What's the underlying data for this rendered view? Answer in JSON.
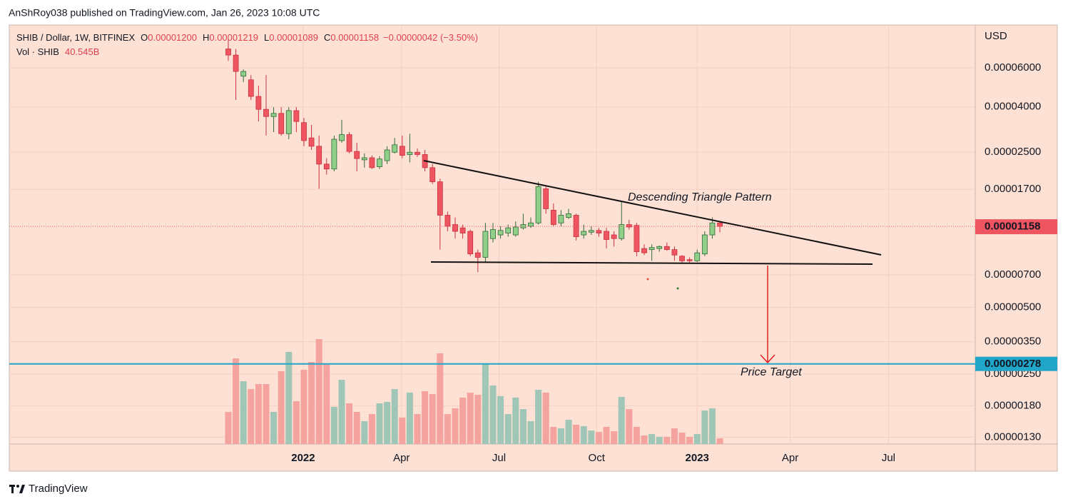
{
  "attribution": "AnShRoy038 published on TradingView.com, Jan 26, 2023 10:08 UTC",
  "brand": "TradingView",
  "chart_data": {
    "type": "candlestick",
    "header": {
      "symbol": "SHIB / Dollar, 1W, BITFINEX",
      "ohlc": [
        {
          "key": "O",
          "value": "0.00001200"
        },
        {
          "key": "H",
          "value": "0.00001219"
        },
        {
          "key": "L",
          "value": "0.00001089"
        },
        {
          "key": "C",
          "value": "0.00001158"
        }
      ],
      "change": "−0.00000042 (−3.50%)",
      "volume_label": "Vol · SHIB",
      "volume": "40.545B"
    },
    "currency": "USD",
    "categories": [
      null,
      null,
      null,
      null,
      null,
      null,
      null,
      null,
      null,
      null,
      null,
      null,
      null,
      null,
      null,
      null,
      null,
      null,
      null,
      null,
      null,
      null,
      null,
      null,
      null,
      null,
      null,
      null,
      null,
      null,
      null,
      null,
      null,
      null,
      null,
      null,
      null,
      null,
      null,
      null,
      null,
      null,
      null,
      null,
      null,
      null,
      null,
      null,
      null,
      null,
      null,
      null,
      null,
      null,
      null,
      null,
      null,
      null,
      null,
      null,
      null,
      null,
      null,
      null,
      null,
      null
    ],
    "open": [
      7.3e-05,
      6.85e-05,
      5.5e-05,
      5.3e-05,
      4.46e-05,
      3.9e-05,
      3.62e-05,
      3.74e-05,
      3.03e-05,
      3.85e-05,
      3.4e-05,
      2.9e-05,
      2.66e-05,
      2.21e-05,
      2.1e-05,
      2.82e-05,
      3e-05,
      2.52e-05,
      2.31e-05,
      2.36e-05,
      2.15e-05,
      2.29e-05,
      2.5e-05,
      2.66e-05,
      2.44e-05,
      2.5e-05,
      2.44e-05,
      2.13e-05,
      1.84e-05,
      1.3e-05,
      1.18e-05,
      1.14e-05,
      1.1e-05,
      8.8e-06,
      8.4e-06,
      1.02e-05,
      1.06e-05,
      1.08e-05,
      1.06e-05,
      1.14e-05,
      1.16e-05,
      1.2e-05,
      1.71e-05,
      1.37e-05,
      1.2e-05,
      1.27e-05,
      1.3e-05,
      1.06e-05,
      1.09e-05,
      1.11e-05,
      1.1e-05,
      1.06e-05,
      1.02e-05,
      1.18e-05,
      1.17e-05,
      9.2e-06,
      9.1e-06,
      9.2e-06,
      9.4e-06,
      9.1e-06,
      8.5e-06,
      8.2e-06,
      8.1e-06,
      8.7e-06,
      1.06e-05,
      1.2e-05
    ],
    "high": [
      8.07e-05,
      7.3e-05,
      5.9e-05,
      5.57e-05,
      4.98e-05,
      5.57e-05,
      3.99e-05,
      3.99e-05,
      3.99e-05,
      3.99e-05,
      3.57e-05,
      3.32e-05,
      2.97e-05,
      2.35e-05,
      2.97e-05,
      3.5e-05,
      3.08e-05,
      2.76e-05,
      2.47e-05,
      2.42e-05,
      2.4e-05,
      2.66e-05,
      2.9e-05,
      2.97e-05,
      3.03e-05,
      2.6e-05,
      2.56e-05,
      2.21e-05,
      1.9e-05,
      1.35e-05,
      1.27e-05,
      1.18e-05,
      1.12e-05,
      9.1e-06,
      1.2e-05,
      1.2e-05,
      1.16e-05,
      1.18e-05,
      1.22e-05,
      1.32e-05,
      1.27e-05,
      1.84e-05,
      1.77e-05,
      1.47e-05,
      1.37e-05,
      1.39e-05,
      1.32e-05,
      1.18e-05,
      1.16e-05,
      1.14e-05,
      1.14e-05,
      1.1e-05,
      1.5e-05,
      1.24e-05,
      1.2e-05,
      9.6e-06,
      9.6e-06,
      9.5e-06,
      9.8e-06,
      9.4e-06,
      8.6e-06,
      8.4e-06,
      9.1e-06,
      1.1e-05,
      1.27e-05,
      1.219e-05
    ],
    "low": [
      6.45e-05,
      4.3e-05,
      5.17e-05,
      4.3e-05,
      3.44e-05,
      2.97e-05,
      3.08e-05,
      2.97e-05,
      2.86e-05,
      3.08e-05,
      2.66e-05,
      2.56e-05,
      1.71e-05,
      1.98e-05,
      2.05e-05,
      2.76e-05,
      2.47e-05,
      2.05e-05,
      2.13e-05,
      2.1e-05,
      2.1e-05,
      2.21e-05,
      2.47e-05,
      2.35e-05,
      2.25e-05,
      2.38e-05,
      2.05e-05,
      1.8e-05,
      9.1e-06,
      1.1e-05,
      1.02e-05,
      1.02e-05,
      8.5e-06,
      7.2e-06,
      8e-06,
      9.8e-06,
      1.02e-05,
      1.04e-05,
      1.04e-05,
      1.12e-05,
      1.14e-05,
      1.18e-05,
      1.32e-05,
      1.16e-05,
      1.16e-05,
      1.25e-05,
      1e-05,
      1.02e-05,
      1.06e-05,
      1.04e-05,
      9.2e-06,
      9.4e-06,
      1e-05,
      1.12e-05,
      8.5e-06,
      8.6e-06,
      8.1e-06,
      8.9e-06,
      9e-06,
      8.1e-06,
      7.9e-06,
      7.9e-06,
      8e-06,
      8.5e-06,
      1.02e-05,
      1.089e-05
    ],
    "close": [
      6.85e-05,
      5.78e-05,
      5.78e-05,
      4.46e-05,
      3.9e-05,
      3.62e-05,
      3.74e-05,
      3.03e-05,
      3.85e-05,
      3.44e-05,
      2.82e-05,
      2.66e-05,
      2.21e-05,
      2.1e-05,
      2.86e-05,
      3e-05,
      2.52e-05,
      2.34e-05,
      2.36e-05,
      2.13e-05,
      2.33e-05,
      2.56e-05,
      2.7e-05,
      2.42e-05,
      2.5e-05,
      2.44e-05,
      2.13e-05,
      1.84e-05,
      1.3e-05,
      1.16e-05,
      1.1e-05,
      1.08e-05,
      8.7e-06,
      8.4e-06,
      1.1e-05,
      1.12e-05,
      1.11e-05,
      1.14e-05,
      1.15e-05,
      1.18e-05,
      1.2e-05,
      1.75e-05,
      1.39e-05,
      1.18e-05,
      1.3e-05,
      1.32e-05,
      1.04e-05,
      1.1e-05,
      1.11e-05,
      1.08e-05,
      1.01e-05,
      1.02e-05,
      1.18e-05,
      1.15e-05,
      8.9e-06,
      8.8e-06,
      9.3e-06,
      9.4e-06,
      9.1e-06,
      8.6e-06,
      8.1e-06,
      8.1e-06,
      8.8e-06,
      1.06e-05,
      1.2e-05,
      1.158e-05
    ],
    "volume": [
      228,
      608,
      446,
      390,
      426,
      426,
      228,
      517,
      654,
      304,
      527,
      583,
      745,
      568,
      264,
      456,
      289,
      228,
      162,
      213,
      289,
      299,
      390,
      188,
      365,
      213,
      375,
      355,
      644,
      213,
      254,
      330,
      365,
      350,
      568,
      416,
      340,
      213,
      330,
      248,
      162,
      385,
      365,
      122,
      112,
      172,
      137,
      127,
      96,
      86,
      122,
      91,
      335,
      248,
      122,
      61,
      71,
      51,
      51,
      112,
      81,
      51,
      71,
      238,
      254,
      40.545
    ],
    "up_color": "#8fcf8a",
    "up_edge": "#2e6b35",
    "down_color": "#ef5461",
    "down_edge": "#c9323f",
    "up_volume_color": "#9fc6b6",
    "down_volume_color": "#f4a39f",
    "log_scale": true,
    "ylim": [
      1.21e-06,
      9.36e-05
    ],
    "yticks": [
      {
        "value": 6e-05,
        "label": "0.00006000"
      },
      {
        "value": 4e-05,
        "label": "0.00004000"
      },
      {
        "value": 2.5e-05,
        "label": "0.00002500"
      },
      {
        "value": 1.7e-05,
        "label": "0.00001700"
      },
      {
        "value": 7e-06,
        "label": "0.00000700"
      },
      {
        "value": 5e-06,
        "label": "0.00000500"
      },
      {
        "value": 3.5e-06,
        "label": "0.00000350"
      },
      {
        "value": 2.5e-06,
        "label": "0.00000250"
      },
      {
        "value": 1.8e-06,
        "label": "0.00000180"
      },
      {
        "value": 1.3e-06,
        "label": "0.00000130"
      }
    ],
    "xlim": [
      -28.96,
      98.77
    ],
    "xticks": [
      {
        "value": 9.9,
        "label": "2022"
      },
      {
        "value": 22.9,
        "label": "Apr"
      },
      {
        "value": 35.8,
        "label": "Jul"
      },
      {
        "value": 48.7,
        "label": "Oct"
      },
      {
        "value": 62.0,
        "label": "2023"
      },
      {
        "value": 74.3,
        "label": "Apr"
      },
      {
        "value": 87.3,
        "label": "Jul"
      }
    ],
    "grid": true,
    "price_target": {
      "value": 2.78e-06,
      "label": "Price Target",
      "color": "#1fa6c9"
    },
    "annotation": "Descending Triangle Pattern"
  }
}
